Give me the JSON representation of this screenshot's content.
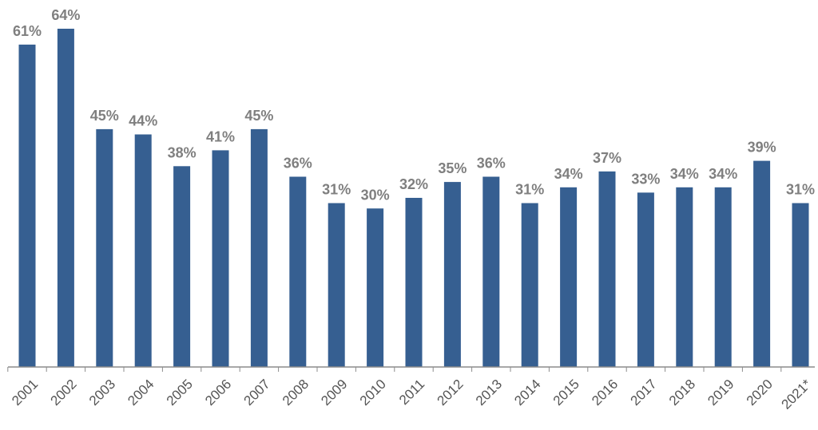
{
  "chart_data": {
    "type": "bar",
    "title": "",
    "xlabel": "",
    "ylabel": "",
    "categories": [
      "2001",
      "2002",
      "2003",
      "2004",
      "2005",
      "2006",
      "2007",
      "2008",
      "2009",
      "2010",
      "2011",
      "2012",
      "2013",
      "2014",
      "2015",
      "2016",
      "2017",
      "2018",
      "2019",
      "2020",
      "2021*"
    ],
    "values": [
      61,
      64,
      45,
      44,
      38,
      41,
      45,
      36,
      31,
      30,
      32,
      35,
      36,
      31,
      34,
      37,
      33,
      34,
      34,
      39,
      31
    ],
    "data_labels": [
      "61%",
      "64%",
      "45%",
      "44%",
      "38%",
      "41%",
      "45%",
      "36%",
      "31%",
      "30%",
      "32%",
      "35%",
      "36%",
      "31%",
      "34%",
      "37%",
      "33%",
      "34%",
      "34%",
      "39%",
      "31%"
    ],
    "ylim": [
      0,
      64
    ],
    "grid": false,
    "legend": "none",
    "colors": {
      "bar": "#365f91",
      "data_label": "#7f7f7f",
      "axis": "#8c8c8c",
      "tick_label": "#555555"
    }
  }
}
